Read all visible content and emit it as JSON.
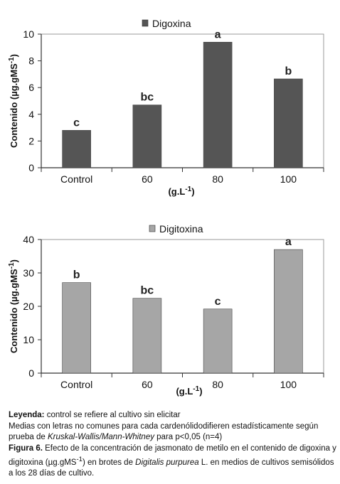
{
  "chart_data": [
    {
      "type": "bar",
      "legend": "Digoxina",
      "categories": [
        "Control",
        "60",
        "80",
        "100"
      ],
      "values": [
        2.8,
        4.7,
        9.4,
        6.65
      ],
      "significance": [
        "c",
        "bc",
        "a",
        "b"
      ],
      "ylabel": "Contenido (µg.gMS",
      "ylabel_sup": "-1",
      "ylabel_close": ")",
      "xlabel": "(g.L",
      "xlabel_sup": "-1",
      "xlabel_close": ")",
      "ylim": [
        0,
        10
      ],
      "yticks": [
        0,
        2,
        4,
        6,
        8,
        10
      ],
      "bar_color": "#555555",
      "legend_position": "top"
    },
    {
      "type": "bar",
      "legend": "Digitoxina",
      "categories": [
        "Control",
        "60",
        "80",
        "100"
      ],
      "values": [
        27.1,
        22.4,
        19.2,
        37.0
      ],
      "significance": [
        "b",
        "bc",
        "c",
        "a"
      ],
      "ylabel": "Contenido (µg.gMS",
      "ylabel_sup": "-1",
      "ylabel_close": ")",
      "xlabel": "(g.L",
      "xlabel_sup": "-1",
      "xlabel_close": ")",
      "ylim": [
        0,
        40
      ],
      "yticks": [
        0,
        10,
        20,
        30,
        40
      ],
      "bar_color": "#a6a6a6",
      "legend_position": "top"
    }
  ],
  "caption": {
    "leyenda_label": "Leyenda:",
    "leyenda_text": " control se refiere al cultivo sin elicitar",
    "medias_text_1": "Medias con letras no comunes para cada cardenólidodifieren estadísticamente según prueba de ",
    "medias_test": "Kruskal-Wallis/Mann-Whitney",
    "medias_text_2": " para p<0,05 (n=4)",
    "figura_label": "Figura 6.",
    "figura_text_1": " Efecto de la concentración de jasmonato de metilo en el contenido de digoxina y digitoxina (µg.gMS",
    "figura_sup": "-1",
    "figura_text_2": ") en brotes de ",
    "figura_species": "Digitalis purpurea",
    "figura_text_3": " L. en medios de cultivos semisólidos a los 28 días de cultivo."
  }
}
